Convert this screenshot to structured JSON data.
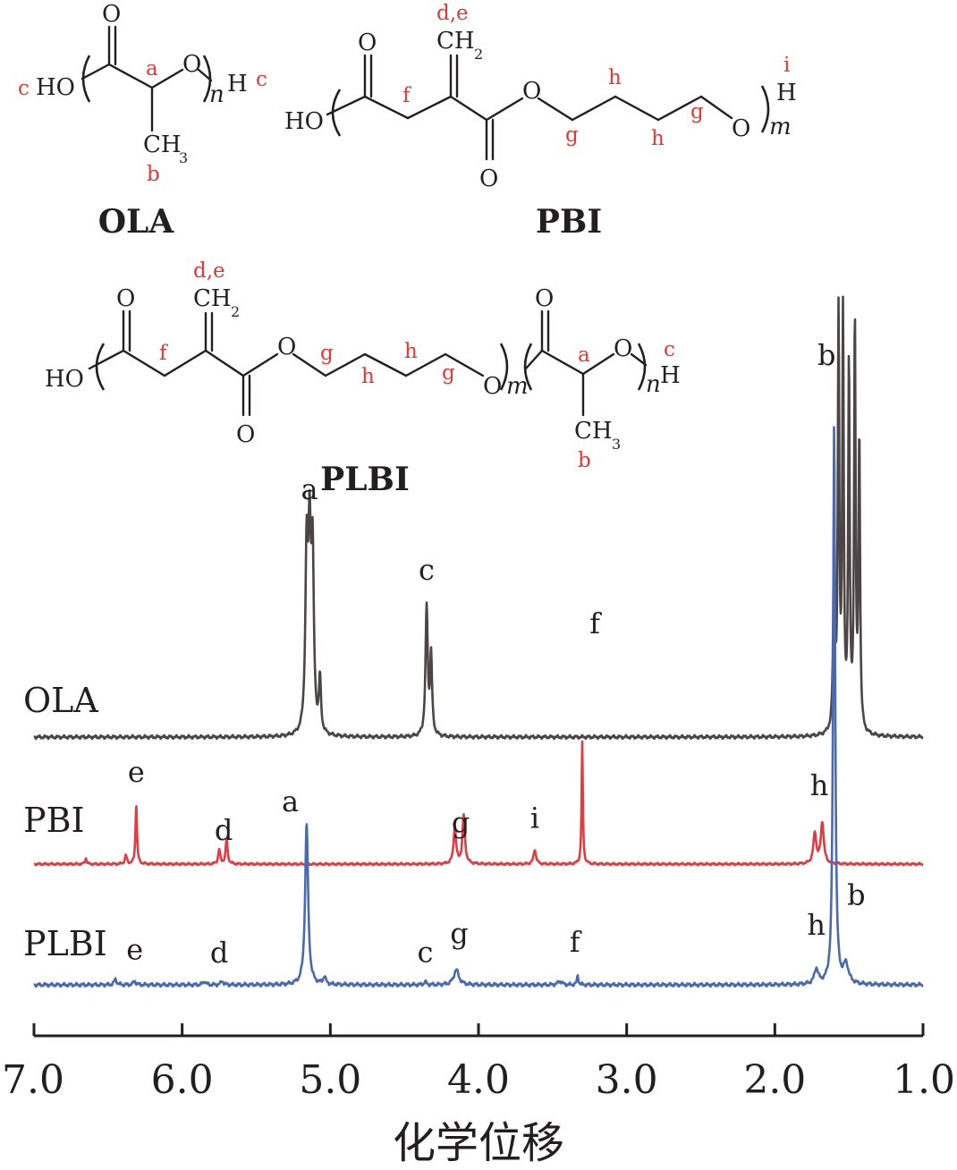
{
  "structures": {
    "ola": {
      "name": "OLA",
      "atoms": {
        "o_carbonyl": "O",
        "ho": "HO",
        "o_ether": "O",
        "h_end": "H",
        "ch": "CH",
        "ch_sub": "3",
        "n": "n"
      },
      "labels": {
        "a": "a",
        "b": "b",
        "c_left": "c",
        "c_right": "c"
      }
    },
    "pbi": {
      "name": "PBI",
      "atoms": {
        "ch": "CH",
        "ch_sub": "2",
        "o_top": "O",
        "ho": "HO",
        "o_ester": "O",
        "o_bottom": "O",
        "o_end": "O",
        "h_end": "H",
        "m": "m"
      },
      "labels": {
        "de": "d,e",
        "f": "f",
        "g1": "g",
        "h1": "h",
        "h2": "h",
        "g2": "g",
        "i": "i"
      }
    },
    "plbi": {
      "name": "PLBI",
      "atoms": {
        "ch": "CH",
        "ch_sub": "2",
        "o_top": "O",
        "ho": "HO",
        "o_ester": "O",
        "o_bottom": "O",
        "o_mid": "O",
        "m": "m",
        "o_lac_top": "O",
        "o_lac": "O",
        "h_end": "H",
        "n": "n",
        "ch3": "CH",
        "ch3_sub": "3"
      },
      "labels": {
        "de": "d,e",
        "f": "f",
        "g1": "g",
        "h1": "h",
        "h2": "h",
        "g2": "g",
        "a": "a",
        "b": "b",
        "c": "c"
      }
    }
  },
  "chart_data": {
    "type": "line",
    "title": "",
    "xlabel": "化学位移",
    "ylabel": "",
    "xlim": [
      7.0,
      1.0
    ],
    "x_reversed": true,
    "xticks": [
      7.0,
      6.0,
      5.0,
      4.0,
      3.0,
      2.0,
      1.0
    ],
    "xtick_labels": [
      "7.0",
      "6.0",
      "5.0",
      "4.0",
      "3.0",
      "2.0",
      "1.0"
    ],
    "grid": false,
    "series": [
      {
        "name": "OLA",
        "color": "#4d4545",
        "peaks": [
          {
            "ppm": 5.16,
            "height": 0.97,
            "width": 0.01
          },
          {
            "ppm": 5.14,
            "height": 1.0,
            "width": 0.01
          },
          {
            "ppm": 5.12,
            "height": 0.97,
            "width": 0.01
          },
          {
            "ppm": 5.07,
            "height": 0.3,
            "width": 0.008
          },
          {
            "ppm": 4.35,
            "height": 0.72,
            "width": 0.009
          },
          {
            "ppm": 4.32,
            "height": 0.44,
            "width": 0.008
          },
          {
            "ppm": 1.6,
            "height": 1.22,
            "width": 0.006
          },
          {
            "ppm": 1.57,
            "height": 2.3,
            "width": 0.006
          },
          {
            "ppm": 1.54,
            "height": 2.3,
            "width": 0.006
          },
          {
            "ppm": 1.5,
            "height": 2.05,
            "width": 0.006
          },
          {
            "ppm": 1.46,
            "height": 2.3,
            "width": 0.006
          },
          {
            "ppm": 1.43,
            "height": 1.65,
            "width": 0.006
          }
        ],
        "peak_labels": [
          {
            "label": "a",
            "ppm": 5.14
          },
          {
            "label": "c",
            "ppm": 4.35
          },
          {
            "label": "b",
            "ppm": 1.53
          }
        ]
      },
      {
        "name": "PBI",
        "color": "#e03c44",
        "peaks": [
          {
            "ppm": 6.65,
            "height": 0.05,
            "width": 0.006
          },
          {
            "ppm": 6.38,
            "height": 0.07,
            "width": 0.008
          },
          {
            "ppm": 6.31,
            "height": 0.5,
            "width": 0.006
          },
          {
            "ppm": 5.75,
            "height": 0.12,
            "width": 0.008
          },
          {
            "ppm": 5.7,
            "height": 0.2,
            "width": 0.008
          },
          {
            "ppm": 4.16,
            "height": 0.3,
            "width": 0.01
          },
          {
            "ppm": 4.1,
            "height": 0.4,
            "width": 0.01
          },
          {
            "ppm": 3.62,
            "height": 0.12,
            "width": 0.01
          },
          {
            "ppm": 3.3,
            "height": 1.0,
            "width": 0.005
          },
          {
            "ppm": 1.73,
            "height": 0.25,
            "width": 0.012
          },
          {
            "ppm": 1.68,
            "height": 0.34,
            "width": 0.012
          }
        ],
        "peak_labels": [
          {
            "label": "e",
            "ppm": 6.31
          },
          {
            "label": "d",
            "ppm": 5.72
          },
          {
            "label": "g",
            "ppm": 4.12
          },
          {
            "label": "i",
            "ppm": 3.62
          },
          {
            "label": "f",
            "ppm": 3.3
          },
          {
            "label": "h",
            "ppm": 1.7
          }
        ]
      },
      {
        "name": "PLBI",
        "color": "#4a6ab0",
        "peaks": [
          {
            "ppm": 6.45,
            "height": 0.03,
            "width": 0.01
          },
          {
            "ppm": 6.32,
            "height": 0.02,
            "width": 0.01
          },
          {
            "ppm": 5.85,
            "height": 0.02,
            "width": 0.01
          },
          {
            "ppm": 5.73,
            "height": 0.02,
            "width": 0.01
          },
          {
            "ppm": 5.16,
            "height": 0.85,
            "width": 0.012
          },
          {
            "ppm": 5.04,
            "height": 0.04,
            "width": 0.01
          },
          {
            "ppm": 4.36,
            "height": 0.015,
            "width": 0.01
          },
          {
            "ppm": 4.15,
            "height": 0.08,
            "width": 0.02
          },
          {
            "ppm": 3.45,
            "height": 0.02,
            "width": 0.015
          },
          {
            "ppm": 3.33,
            "height": 0.05,
            "width": 0.006
          },
          {
            "ppm": 1.72,
            "height": 0.08,
            "width": 0.015
          },
          {
            "ppm": 1.6,
            "height": 2.95,
            "width": 0.008
          },
          {
            "ppm": 1.52,
            "height": 0.1,
            "width": 0.02
          }
        ],
        "peak_labels": [
          {
            "label": "e",
            "ppm": 6.32
          },
          {
            "label": "d",
            "ppm": 5.75
          },
          {
            "label": "a",
            "ppm": 5.27
          },
          {
            "label": "c",
            "ppm": 4.36
          },
          {
            "label": "g",
            "ppm": 4.13
          },
          {
            "label": "f",
            "ppm": 3.35
          },
          {
            "label": "h",
            "ppm": 1.72
          },
          {
            "label": "b",
            "ppm": 1.45
          }
        ]
      }
    ]
  }
}
